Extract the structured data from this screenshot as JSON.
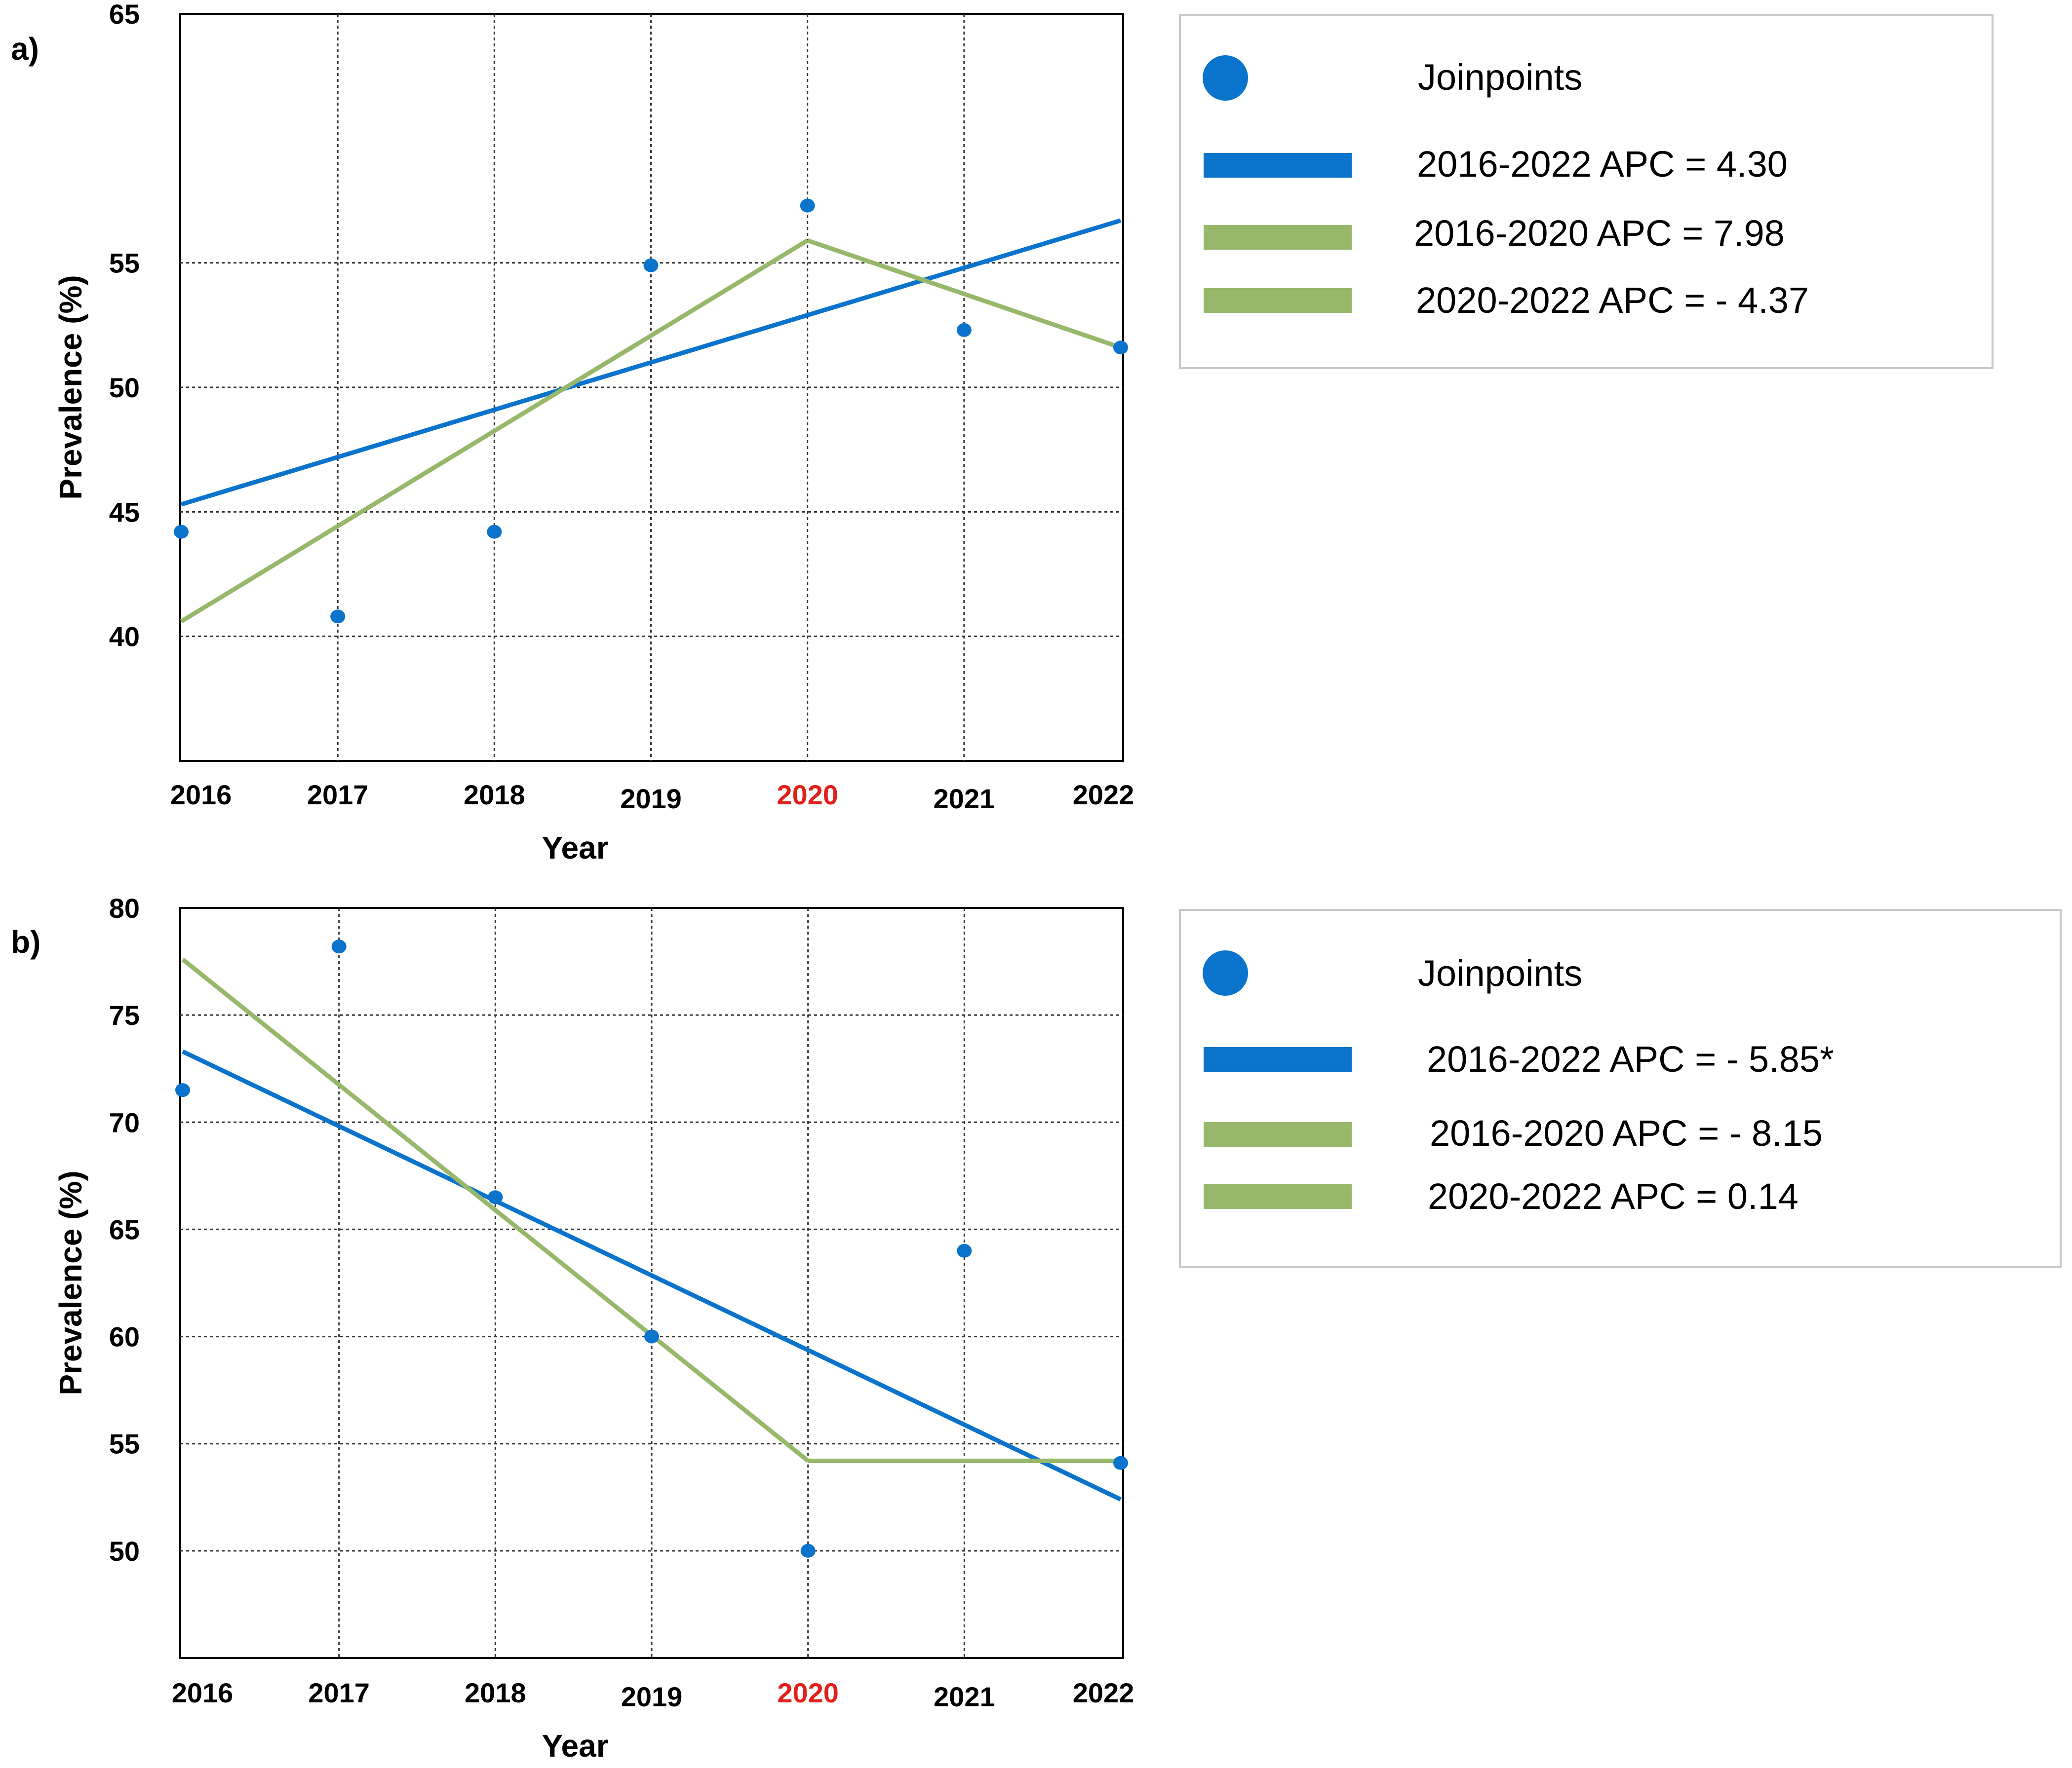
{
  "chart_data": [
    {
      "panel_label": "a)",
      "type": "line",
      "xlabel": "Year",
      "ylabel": "Prevalence (%)",
      "categories": [
        "2016",
        "2017",
        "2018",
        "2019",
        "2020",
        "2021",
        "2022"
      ],
      "highlight_category": "2020",
      "highlight_color": "#e0201b",
      "yticks": [
        40,
        45,
        50,
        55,
        65
      ],
      "ylim": [
        35,
        65
      ],
      "grid": true,
      "points": {
        "name": "Joinpoints",
        "values": [
          44.2,
          40.8,
          44.2,
          54.9,
          57.3,
          52.3,
          51.6
        ]
      },
      "series": [
        {
          "name": "2016-2022 APC = 4.30",
          "color": "#0a73cc",
          "x": [
            "2016",
            "2022"
          ],
          "values": [
            45.3,
            56.7
          ]
        },
        {
          "name": "2016-2020 APC = 7.98",
          "color": "#97b86b",
          "x": [
            "2016",
            "2020"
          ],
          "values": [
            40.6,
            55.9
          ]
        },
        {
          "name": "2020-2022 APC = - 4.37",
          "color": "#97b86b",
          "x": [
            "2020",
            "2022"
          ],
          "values": [
            55.9,
            51.6
          ]
        }
      ],
      "legend": {
        "placement": "right",
        "entries": [
          "Joinpoints",
          "2016-2022 APC = 4.30",
          "2016-2020 APC = 7.98",
          "2020-2022 APC = - 4.37"
        ]
      }
    },
    {
      "panel_label": "b)",
      "type": "line",
      "xlabel": "Year",
      "ylabel": "Prevalence (%)",
      "categories": [
        "2016",
        "2017",
        "2018",
        "2019",
        "2020",
        "2021",
        "2022"
      ],
      "highlight_category": "2020",
      "highlight_color": "#e0201b",
      "yticks": [
        50,
        55,
        60,
        65,
        70,
        75,
        80
      ],
      "ylim": [
        45,
        80
      ],
      "grid": true,
      "points": {
        "name": "Joinpoints",
        "values": [
          71.5,
          78.2,
          66.5,
          60.0,
          50.0,
          64.0,
          54.1
        ]
      },
      "series": [
        {
          "name": "2016-2022 APC = - 5.85*",
          "color": "#0a73cc",
          "x": [
            "2016",
            "2022"
          ],
          "values": [
            73.3,
            52.4
          ]
        },
        {
          "name": "2016-2020 APC = - 8.15",
          "color": "#97b86b",
          "x": [
            "2016",
            "2020"
          ],
          "values": [
            77.6,
            54.2
          ]
        },
        {
          "name": "2020-2022 APC = 0.14",
          "color": "#97b86b",
          "x": [
            "2020",
            "2022"
          ],
          "values": [
            54.2,
            54.2
          ]
        }
      ],
      "legend": {
        "placement": "right",
        "entries": [
          "Joinpoints",
          "2016-2022 APC = - 5.85*",
          "2016-2020 APC = - 8.15",
          "2020-2022 APC = 0.14"
        ]
      }
    }
  ]
}
